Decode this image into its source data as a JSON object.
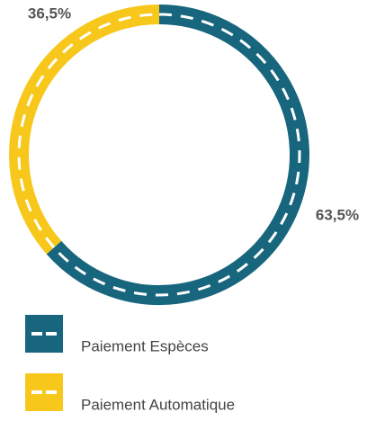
{
  "chart_data": {
    "type": "pie",
    "donut": true,
    "categories": [
      "Paiement Espèces",
      "Paiement Automatique"
    ],
    "values": [
      63.5,
      36.5
    ],
    "value_labels": [
      "63,5%",
      "36,5%"
    ],
    "colors": [
      "#17667e",
      "#f7c81b"
    ]
  }
}
